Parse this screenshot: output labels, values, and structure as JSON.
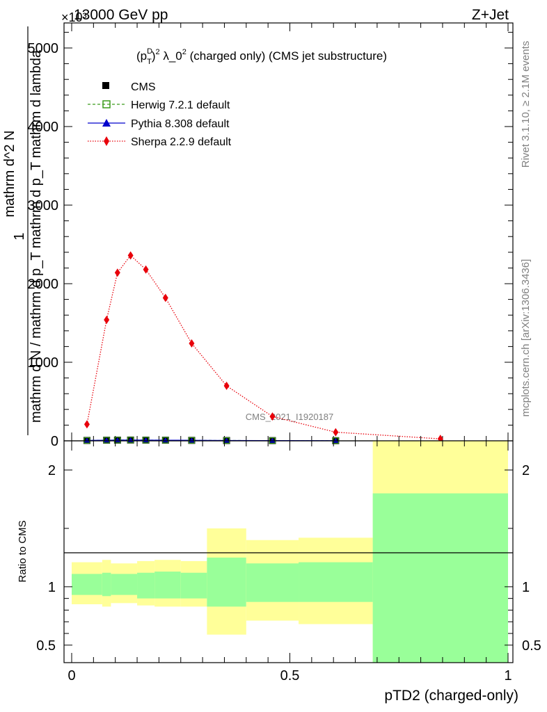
{
  "header": {
    "energy": "13000 GeV pp",
    "process": "Z+Jet",
    "exponent": "×10³",
    "subtitle": "(p_T^D)^2 λ_0^2 (charged only) (CMS jet substructure)",
    "watermark": "CMS_2021_I1920187",
    "rivet": "Rivet 3.1.10, ≥ 2.1M events",
    "mcplots": "mcplots.cern.ch [arXiv:1306.3436]"
  },
  "axes": {
    "ylabel_num": "1",
    "ylabel_den": "mathrm d N / mathrm d p_T mathrm d p_T mathrm d lambda",
    "ylabel_top": "mathrm d^2 N",
    "xlabel": "pTD2 (charged-only)",
    "ratio_ylabel": "Ratio to CMS"
  },
  "colors": {
    "herwig": "#3a9a1a",
    "pythia": "#0000cc",
    "sherpa": "#e8000b",
    "band_inner": "#99ff99",
    "band_outer": "#ffff99"
  },
  "chart_data": [
    {
      "type": "line",
      "title": "(p_T^D)^2 λ_0^2 (charged only) (CMS jet substructure)",
      "xlabel": "pTD2 (charged-only)",
      "ylabel": "1 / N dN/dp_T dp_T dλ",
      "xlim": [
        0,
        1
      ],
      "ylim": [
        0,
        5300
      ],
      "y_multiplier": "×10³",
      "yticks": [
        0,
        1000,
        2000,
        3000,
        4000,
        5000
      ],
      "ytick_labels": [
        "0",
        "1000",
        "2000",
        "3000",
        "4000",
        "5000"
      ],
      "legend": [
        "CMS",
        "Herwig 7.2.1 default",
        "Pythia 8.308 default",
        "Sherpa 2.2.9 default"
      ],
      "legend_position": "top-left",
      "series": [
        {
          "name": "CMS",
          "x": [
            0.035,
            0.08,
            0.105,
            0.135,
            0.17,
            0.215,
            0.275,
            0.355,
            0.46,
            0.605
          ],
          "y": [
            5,
            8,
            9,
            10,
            9,
            8,
            6,
            4,
            3,
            2
          ]
        },
        {
          "name": "Herwig 7.2.1 default",
          "x": [
            0.035,
            0.08,
            0.105,
            0.135,
            0.17,
            0.215,
            0.275,
            0.355,
            0.46,
            0.605
          ],
          "y": [
            5,
            8,
            9,
            10,
            9,
            8,
            6,
            4,
            3,
            2
          ]
        },
        {
          "name": "Pythia 8.308 default",
          "x": [
            0.035,
            0.08,
            0.105,
            0.135,
            0.17,
            0.215,
            0.275,
            0.355,
            0.46,
            0.605
          ],
          "y": [
            5,
            8,
            9,
            10,
            9,
            8,
            6,
            4,
            3,
            2
          ]
        },
        {
          "name": "Sherpa 2.2.9 default",
          "x": [
            0.035,
            0.08,
            0.105,
            0.135,
            0.17,
            0.215,
            0.275,
            0.355,
            0.46,
            0.605,
            0.845
          ],
          "y": [
            210,
            1540,
            2140,
            2360,
            2180,
            1820,
            1240,
            700,
            310,
            110,
            25
          ]
        }
      ]
    },
    {
      "type": "area",
      "ylabel": "Ratio to CMS",
      "xlabel": "pTD2 (charged-only)",
      "xlim": [
        0,
        1
      ],
      "ylim": [
        0.35,
        2.25
      ],
      "xticks": [
        0,
        0.5,
        1
      ],
      "xtick_labels": [
        "0",
        "0.5",
        "1"
      ],
      "yticks": [
        0.5,
        1,
        2
      ],
      "ytick_labels": [
        "0.5",
        "1",
        "2"
      ],
      "bins": [
        {
          "lo": 0.0,
          "hi": 0.07,
          "inner": [
            0.93,
            1.11
          ],
          "outer": [
            0.85,
            1.21
          ]
        },
        {
          "lo": 0.07,
          "hi": 0.09,
          "inner": [
            0.92,
            1.12
          ],
          "outer": [
            0.83,
            1.23
          ]
        },
        {
          "lo": 0.09,
          "hi": 0.15,
          "inner": [
            0.93,
            1.11
          ],
          "outer": [
            0.86,
            1.2
          ]
        },
        {
          "lo": 0.15,
          "hi": 0.19,
          "inner": [
            0.9,
            1.12
          ],
          "outer": [
            0.84,
            1.22
          ]
        },
        {
          "lo": 0.19,
          "hi": 0.25,
          "inner": [
            0.9,
            1.13
          ],
          "outer": [
            0.83,
            1.23
          ]
        },
        {
          "lo": 0.25,
          "hi": 0.31,
          "inner": [
            0.9,
            1.12
          ],
          "outer": [
            0.83,
            1.22
          ]
        },
        {
          "lo": 0.31,
          "hi": 0.4,
          "inner": [
            0.83,
            1.25
          ],
          "outer": [
            0.59,
            1.5
          ]
        },
        {
          "lo": 0.4,
          "hi": 0.52,
          "inner": [
            0.87,
            1.2
          ],
          "outer": [
            0.71,
            1.4
          ]
        },
        {
          "lo": 0.52,
          "hi": 0.69,
          "inner": [
            0.87,
            1.21
          ],
          "outer": [
            0.68,
            1.42
          ]
        },
        {
          "lo": 0.69,
          "hi": 1.0,
          "inner": [
            0.35,
            1.8
          ],
          "outer": [
            0.35,
            2.25
          ]
        }
      ]
    }
  ]
}
